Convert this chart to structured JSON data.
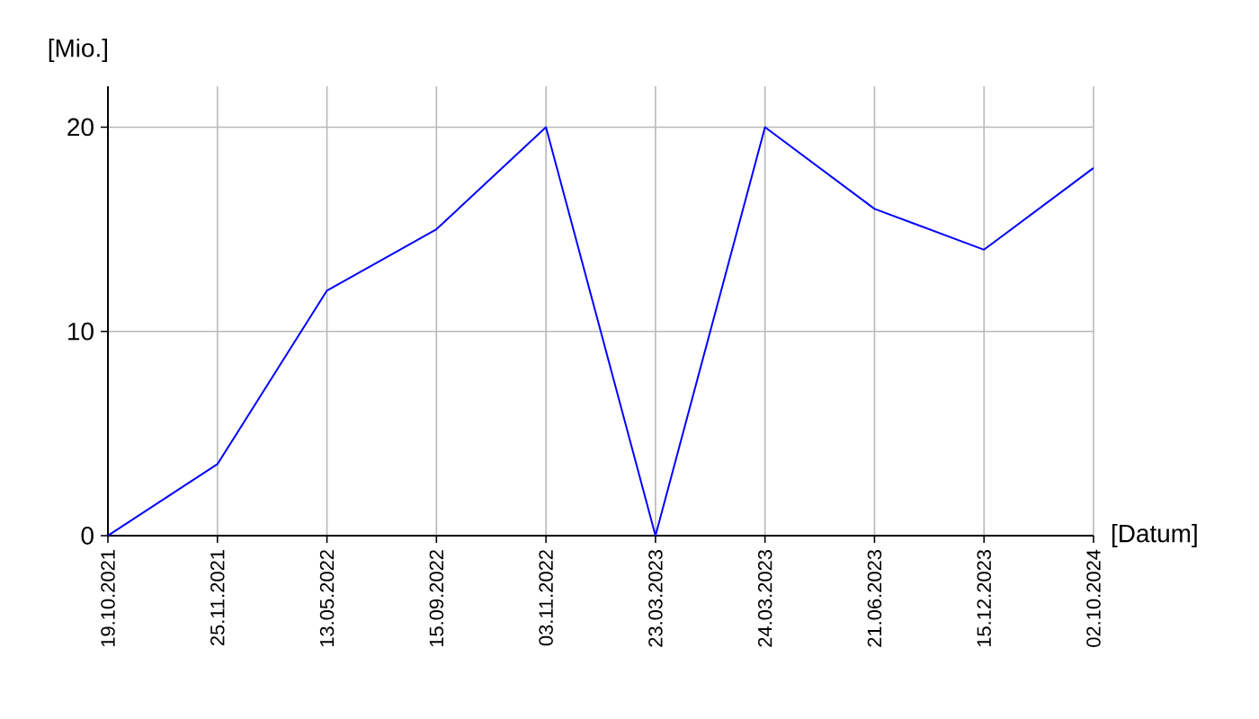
{
  "chart_data": {
    "type": "line",
    "xlabel": "[Datum]",
    "ylabel": "[Mio.]",
    "categories": [
      "19.10.2021",
      "25.11.2021",
      "13.05.2022",
      "15.09.2022",
      "03.11.2022",
      "23.03.2023",
      "24.03.2023",
      "21.06.2023",
      "15.12.2023",
      "02.10.2024"
    ],
    "values": [
      0,
      3.5,
      12,
      15,
      20,
      0,
      20,
      16,
      14,
      18
    ],
    "color": "#0000ff",
    "ylim": [
      0,
      22
    ],
    "yticks": [
      0,
      10,
      20
    ],
    "grid": true
  }
}
